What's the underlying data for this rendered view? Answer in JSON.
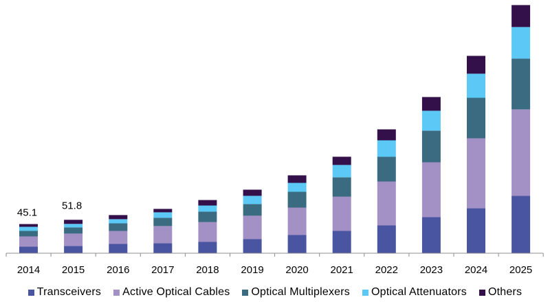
{
  "chart_data": {
    "type": "bar",
    "stacked": true,
    "title": "",
    "xlabel": "",
    "ylabel": "",
    "grid": false,
    "legend_position": "bottom",
    "categories": [
      "2014",
      "2015",
      "2016",
      "2017",
      "2018",
      "2019",
      "2020",
      "2021",
      "2022",
      "2023",
      "2024",
      "2025"
    ],
    "series": [
      {
        "name": "Transceivers",
        "color": "#4a55a2",
        "values": [
          9.7,
          10.8,
          14.0,
          15.1,
          17.2,
          21.5,
          28.0,
          34.4,
          43.0,
          55.9,
          69.9,
          89.2
        ]
      },
      {
        "name": "Active Optical Cables",
        "color": "#a390c5",
        "values": [
          16.1,
          19.4,
          20.4,
          26.9,
          31.2,
          36.6,
          43.0,
          53.8,
          68.8,
          86.0,
          109.7,
          135.5
        ]
      },
      {
        "name": "Optical Multiplexers",
        "color": "#3a6b80",
        "values": [
          8.6,
          9.7,
          11.8,
          12.9,
          16.1,
          18.3,
          24.7,
          30.1,
          38.7,
          49.5,
          63.4,
          79.6
        ]
      },
      {
        "name": "Optical Attenuators",
        "color": "#5bc8f5",
        "values": [
          6.4,
          5.4,
          6.5,
          8.6,
          9.7,
          12.9,
          14.0,
          19.4,
          25.8,
          31.2,
          37.6,
          49.5
        ]
      },
      {
        "name": "Others",
        "color": "#33104a",
        "values": [
          4.3,
          6.5,
          6.5,
          5.4,
          8.6,
          9.7,
          11.8,
          12.9,
          17.2,
          21.5,
          28.0,
          34.4
        ]
      }
    ],
    "data_labels": [
      {
        "category": "2014",
        "text": "45.1"
      },
      {
        "category": "2015",
        "text": "51.8"
      }
    ],
    "y_axis_visible": false
  }
}
